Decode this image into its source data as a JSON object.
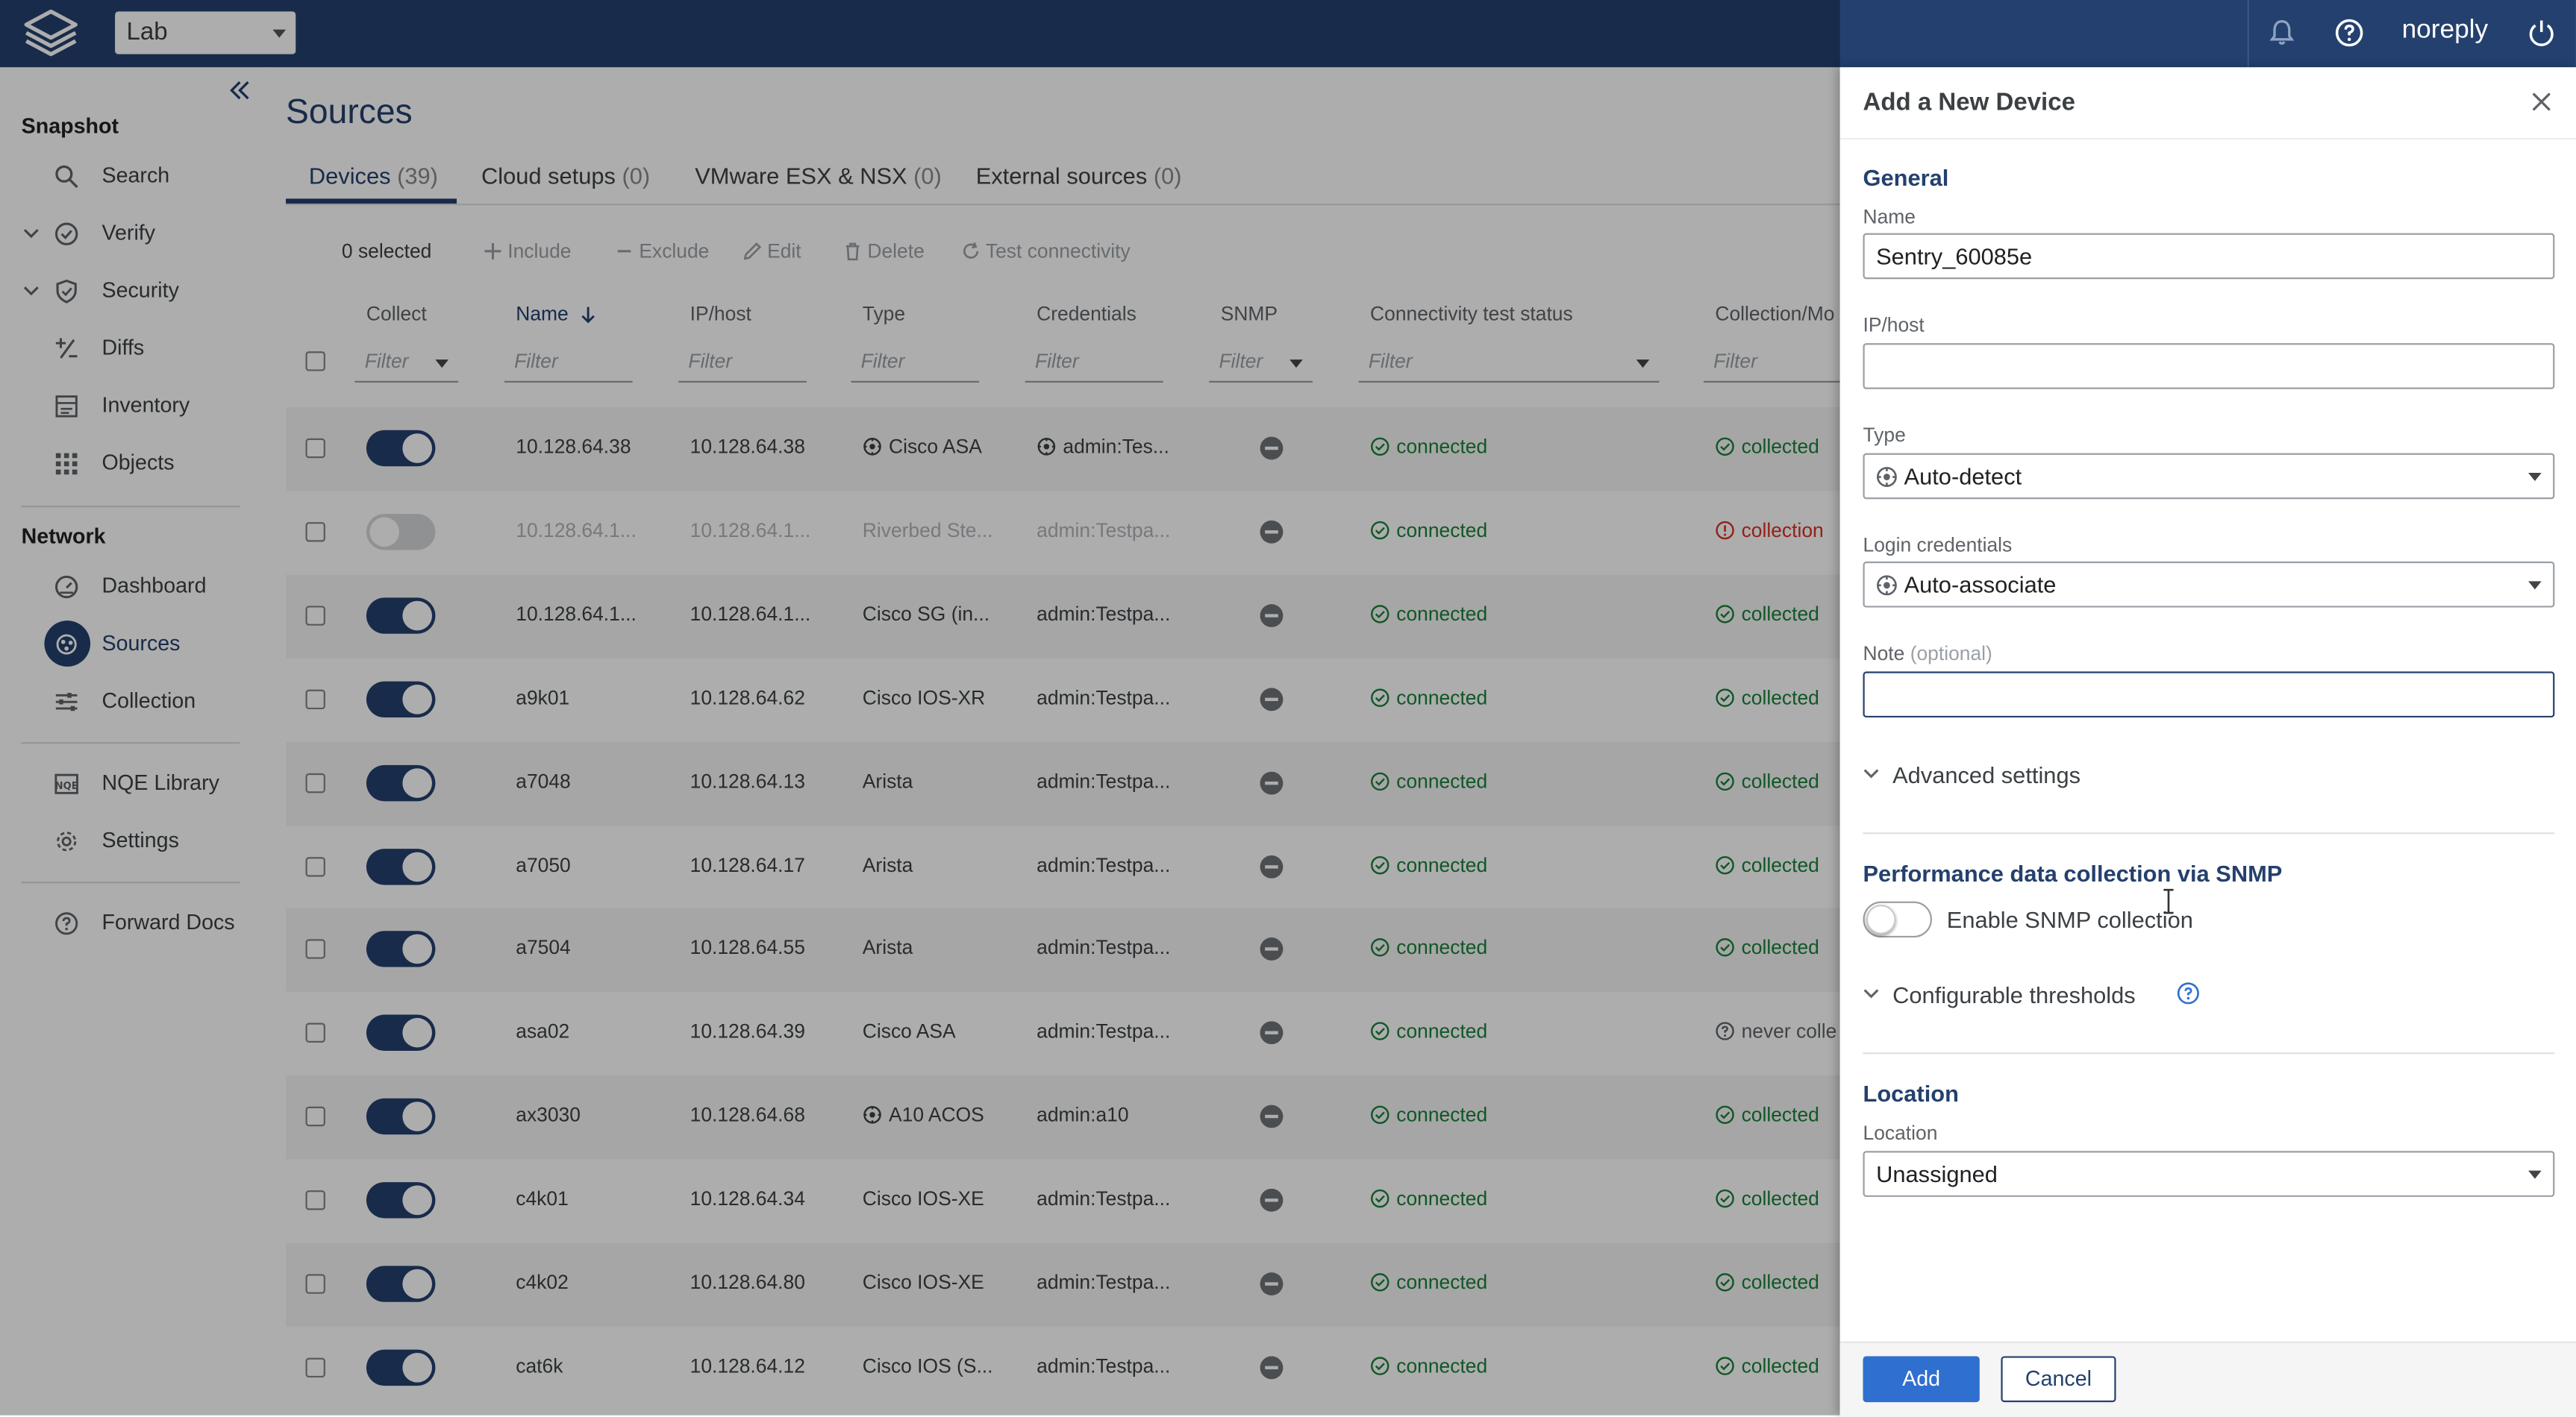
{
  "topbar": {
    "snapshot": "Lab",
    "user": "noreply"
  },
  "sidebar": {
    "snapshot_section": "Snapshot",
    "snapshot_items": [
      {
        "label": "Search",
        "icon": "search-icon"
      },
      {
        "label": "Verify",
        "icon": "check-circle-icon"
      },
      {
        "label": "Security",
        "icon": "shield-icon"
      },
      {
        "label": "Diffs",
        "icon": "diff-icon"
      },
      {
        "label": "Inventory",
        "icon": "inventory-icon"
      },
      {
        "label": "Objects",
        "icon": "grid-icon"
      }
    ],
    "network_section": "Network",
    "network_items": [
      {
        "label": "Dashboard",
        "icon": "gauge-icon"
      },
      {
        "label": "Sources",
        "icon": "sources-icon"
      },
      {
        "label": "Collection",
        "icon": "sliders-icon"
      }
    ],
    "other_items": [
      {
        "label": "NQE Library",
        "icon": "nqe-icon"
      },
      {
        "label": "Settings",
        "icon": "gear-icon"
      }
    ],
    "docs_item": {
      "label": "Forward Docs",
      "icon": "help-circle-icon"
    }
  },
  "main": {
    "title": "Sources",
    "tabs": [
      {
        "label": "Devices",
        "count": "(39)"
      },
      {
        "label": "Cloud setups",
        "count": "(0)"
      },
      {
        "label": "VMware ESX & NSX",
        "count": "(0)"
      },
      {
        "label": "External sources",
        "count": "(0)"
      }
    ],
    "toolbar": {
      "selected": "0 selected",
      "include": "Include",
      "exclude": "Exclude",
      "edit": "Edit",
      "delete": "Delete",
      "test": "Test connectivity"
    },
    "columns": [
      "Collect",
      "Name",
      "IP/host",
      "Type",
      "Credentials",
      "SNMP",
      "Connectivity test status",
      "Collection/Mo"
    ],
    "filter_placeholder": "Filter",
    "rows": [
      {
        "name": "10.128.64.38",
        "ip": "10.128.64.38",
        "type": "Cisco ASA",
        "type_icon": true,
        "cred": "admin:Tes...",
        "cred_icon": true,
        "collect": true,
        "conn": "connected",
        "coll": "collected",
        "coll_status": "ok",
        "dim": false
      },
      {
        "name": "10.128.64.1...",
        "ip": "10.128.64.1...",
        "type": "Riverbed Ste...",
        "type_icon": false,
        "cred": "admin:Testpa...",
        "cred_icon": false,
        "collect": false,
        "conn": "connected",
        "coll": "collection",
        "coll_status": "error",
        "dim": true
      },
      {
        "name": "10.128.64.1...",
        "ip": "10.128.64.1...",
        "type": "Cisco SG (in...",
        "type_icon": false,
        "cred": "admin:Testpa...",
        "cred_icon": false,
        "collect": true,
        "conn": "connected",
        "coll": "collected",
        "coll_status": "ok",
        "dim": false
      },
      {
        "name": "a9k01",
        "ip": "10.128.64.62",
        "type": "Cisco IOS-XR",
        "type_icon": false,
        "cred": "admin:Testpa...",
        "cred_icon": false,
        "collect": true,
        "conn": "connected",
        "coll": "collected",
        "coll_status": "ok",
        "dim": false
      },
      {
        "name": "a7048",
        "ip": "10.128.64.13",
        "type": "Arista",
        "type_icon": false,
        "cred": "admin:Testpa...",
        "cred_icon": false,
        "collect": true,
        "conn": "connected",
        "coll": "collected",
        "coll_status": "ok",
        "dim": false
      },
      {
        "name": "a7050",
        "ip": "10.128.64.17",
        "type": "Arista",
        "type_icon": false,
        "cred": "admin:Testpa...",
        "cred_icon": false,
        "collect": true,
        "conn": "connected",
        "coll": "collected",
        "coll_status": "ok",
        "dim": false
      },
      {
        "name": "a7504",
        "ip": "10.128.64.55",
        "type": "Arista",
        "type_icon": false,
        "cred": "admin:Testpa...",
        "cred_icon": false,
        "collect": true,
        "conn": "connected",
        "coll": "collected",
        "coll_status": "ok",
        "dim": false
      },
      {
        "name": "asa02",
        "ip": "10.128.64.39",
        "type": "Cisco ASA",
        "type_icon": false,
        "cred": "admin:Testpa...",
        "cred_icon": false,
        "collect": true,
        "conn": "connected",
        "coll": "never colle",
        "coll_status": "unknown",
        "dim": false
      },
      {
        "name": "ax3030",
        "ip": "10.128.64.68",
        "type": "A10 ACOS",
        "type_icon": true,
        "cred": "admin:a10",
        "cred_icon": false,
        "collect": true,
        "conn": "connected",
        "coll": "collected",
        "coll_status": "ok",
        "dim": false
      },
      {
        "name": "c4k01",
        "ip": "10.128.64.34",
        "type": "Cisco IOS-XE",
        "type_icon": false,
        "cred": "admin:Testpa...",
        "cred_icon": false,
        "collect": true,
        "conn": "connected",
        "coll": "collected",
        "coll_status": "ok",
        "dim": false
      },
      {
        "name": "c4k02",
        "ip": "10.128.64.80",
        "type": "Cisco IOS-XE",
        "type_icon": false,
        "cred": "admin:Testpa...",
        "cred_icon": false,
        "collect": true,
        "conn": "connected",
        "coll": "collected",
        "coll_status": "ok",
        "dim": false
      },
      {
        "name": "cat6k",
        "ip": "10.128.64.12",
        "type": "Cisco IOS (S...",
        "type_icon": false,
        "cred": "admin:Testpa...",
        "cred_icon": false,
        "collect": true,
        "conn": "connected",
        "coll": "collected",
        "coll_status": "ok",
        "dim": false
      }
    ]
  },
  "drawer": {
    "title": "Add a New Device",
    "general_heading": "General",
    "name_label": "Name",
    "name_value": "Sentry_60085e",
    "ip_label": "IP/host",
    "ip_value": "",
    "type_label": "Type",
    "type_value": "Auto-detect",
    "cred_label": "Login credentials",
    "cred_value": "Auto-associate",
    "note_label": "Note",
    "note_optional": "(optional)",
    "note_value": "",
    "advanced": "Advanced settings",
    "perf_heading": "Performance data collection via SNMP",
    "snmp_toggle_label": "Enable SNMP collection",
    "snmp_enabled": false,
    "thresholds": "Configurable thresholds",
    "location_heading": "Location",
    "location_label": "Location",
    "location_value": "Unassigned",
    "add_label": "Add",
    "cancel_label": "Cancel"
  },
  "colors": {
    "brand": "#24406e",
    "primary_button": "#2f6fd0",
    "success": "#188038",
    "error": "#d93025"
  }
}
